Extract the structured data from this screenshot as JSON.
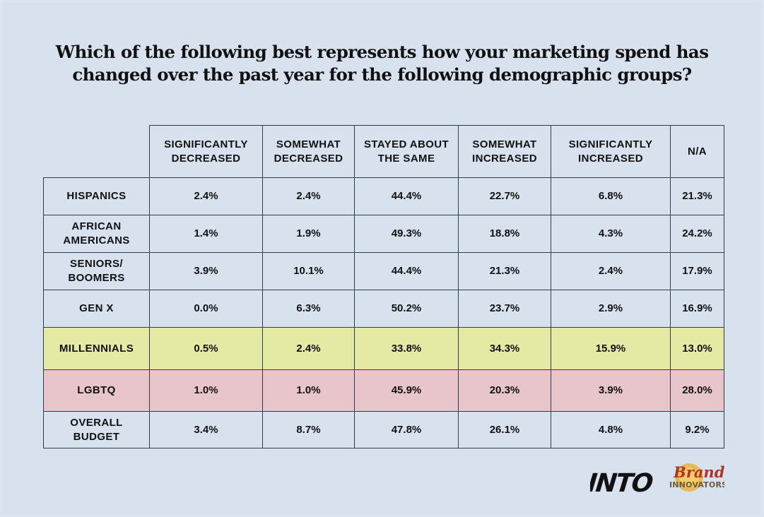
{
  "title_line1": "Which of the following best represents how your marketing spend has",
  "title_line2": "changed over the past year for the following demographic groups?",
  "chart_data": {
    "type": "table",
    "columns": [
      "SIGNIFICANTLY DECREASED",
      "SOMEWHAT DECREASED",
      "STAYED ABOUT THE SAME",
      "SOMEWHAT INCREASED",
      "SIGNIFICANTLY INCREASED",
      "N/A"
    ],
    "rows": [
      {
        "label": "HISPANICS",
        "values": [
          "2.4%",
          "2.4%",
          "44.4%",
          "22.7%",
          "6.8%",
          "21.3%"
        ]
      },
      {
        "label": "AFRICAN AMERICANS",
        "values": [
          "1.4%",
          "1.9%",
          "49.3%",
          "18.8%",
          "4.3%",
          "24.2%"
        ]
      },
      {
        "label": "SENIORS/ BOOMERS",
        "values": [
          "3.9%",
          "10.1%",
          "44.4%",
          "21.3%",
          "2.4%",
          "17.9%"
        ]
      },
      {
        "label": "GEN X",
        "values": [
          "0.0%",
          "6.3%",
          "50.2%",
          "23.7%",
          "2.9%",
          "16.9%"
        ]
      },
      {
        "label": "MILLENNIALS",
        "values": [
          "0.5%",
          "2.4%",
          "33.8%",
          "34.3%",
          "15.9%",
          "13.0%"
        ],
        "highlight": "#e4eaa4"
      },
      {
        "label": "LGBTQ",
        "values": [
          "1.0%",
          "1.0%",
          "45.9%",
          "20.3%",
          "3.9%",
          "28.0%"
        ],
        "highlight": "#e8c4cb"
      },
      {
        "label": "OVERALL BUDGET",
        "values": [
          "3.4%",
          "8.7%",
          "47.8%",
          "26.1%",
          "4.8%",
          "9.2%"
        ]
      }
    ]
  },
  "logos": {
    "into": "INTO",
    "brand_line1": "Brand",
    "brand_line2": "INNOVATORS"
  },
  "colors": {
    "background": "#d8e2ef",
    "border": "#2f3d52",
    "millennials_highlight": "#e4eaa4",
    "lgbtq_highlight": "#e8c4cb",
    "brand_red": "#b3312b",
    "brand_gold": "#e8b43a"
  }
}
